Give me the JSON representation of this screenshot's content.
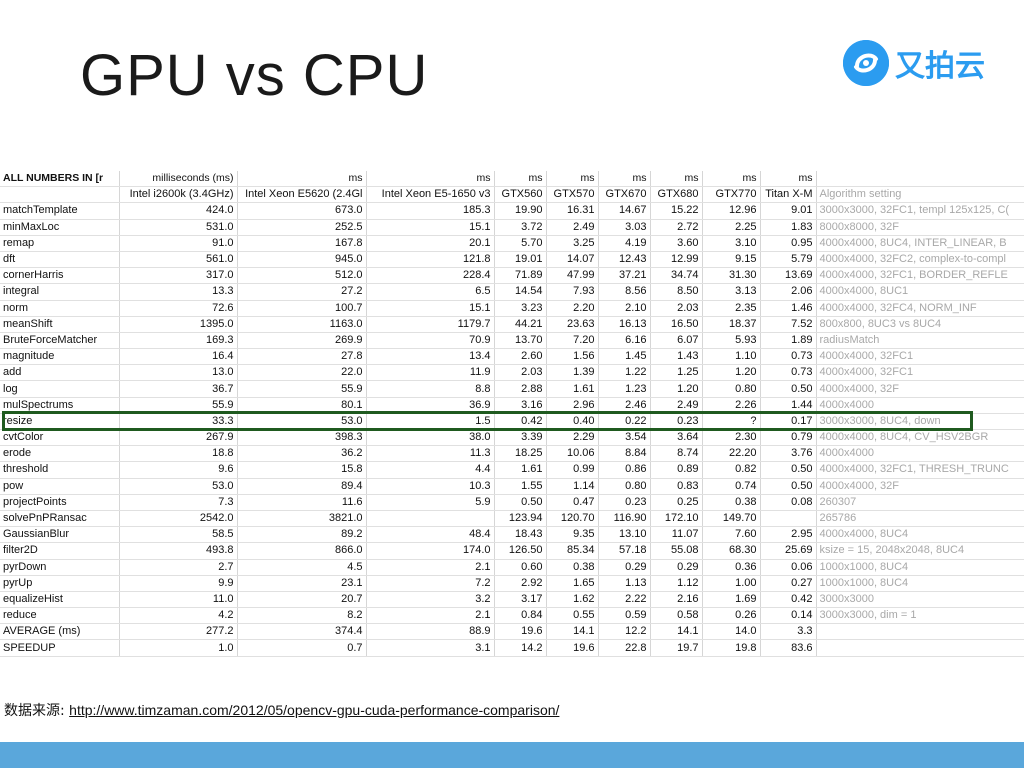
{
  "slide": {
    "title": "GPU vs CPU",
    "logo_text": "又拍云",
    "source_label": "数据来源: ",
    "source_url": "http://www.timzaman.com/2012/05/opencv-gpu-cuda-performance-comparison/"
  },
  "table": {
    "header_units": [
      "ALL NUMBERS IN [r",
      "milliseconds (ms)",
      "ms",
      "ms",
      "ms",
      "ms",
      "ms",
      "ms",
      "ms",
      "ms",
      ""
    ],
    "header_devices": [
      "",
      "Intel i2600k (3.4GHz)",
      "Intel Xeon E5620 (2.4Gl",
      "Intel Xeon E5-1650 v3",
      "GTX560",
      "GTX570",
      "GTX670",
      "GTX680",
      "GTX770",
      "Titan X-M",
      "Algorithm setting"
    ],
    "rows": [
      [
        "matchTemplate",
        "424.0",
        "673.0",
        "185.3",
        "19.90",
        "16.31",
        "14.67",
        "15.22",
        "12.96",
        "9.01",
        "3000x3000, 32FC1, templ 125x125, C("
      ],
      [
        "minMaxLoc",
        "531.0",
        "252.5",
        "15.1",
        "3.72",
        "2.49",
        "3.03",
        "2.72",
        "2.25",
        "1.83",
        "8000x8000, 32F"
      ],
      [
        "remap",
        "91.0",
        "167.8",
        "20.1",
        "5.70",
        "3.25",
        "4.19",
        "3.60",
        "3.10",
        "0.95",
        "4000x4000, 8UC4, INTER_LINEAR, B"
      ],
      [
        "dft",
        "561.0",
        "945.0",
        "121.8",
        "19.01",
        "14.07",
        "12.43",
        "12.99",
        "9.15",
        "5.79",
        "4000x4000, 32FC2, complex-to-compl"
      ],
      [
        "cornerHarris",
        "317.0",
        "512.0",
        "228.4",
        "71.89",
        "47.99",
        "37.21",
        "34.74",
        "31.30",
        "13.69",
        "4000x4000, 32FC1, BORDER_REFLE"
      ],
      [
        "integral",
        "13.3",
        "27.2",
        "6.5",
        "14.54",
        "7.93",
        "8.56",
        "8.50",
        "3.13",
        "2.06",
        "4000x4000, 8UC1"
      ],
      [
        "norm",
        "72.6",
        "100.7",
        "15.1",
        "3.23",
        "2.20",
        "2.10",
        "2.03",
        "2.35",
        "1.46",
        "4000x4000, 32FC4, NORM_INF"
      ],
      [
        "meanShift",
        "1395.0",
        "1163.0",
        "1179.7",
        "44.21",
        "23.63",
        "16.13",
        "16.50",
        "18.37",
        "7.52",
        "800x800, 8UC3 vs 8UC4"
      ],
      [
        "BruteForceMatcher",
        "169.3",
        "269.9",
        "70.9",
        "13.70",
        "7.20",
        "6.16",
        "6.07",
        "5.93",
        "1.89",
        "radiusMatch"
      ],
      [
        "magnitude",
        "16.4",
        "27.8",
        "13.4",
        "2.60",
        "1.56",
        "1.45",
        "1.43",
        "1.10",
        "0.73",
        "4000x4000, 32FC1"
      ],
      [
        "add",
        "13.0",
        "22.0",
        "11.9",
        "2.03",
        "1.39",
        "1.22",
        "1.25",
        "1.20",
        "0.73",
        "4000x4000, 32FC1"
      ],
      [
        "log",
        "36.7",
        "55.9",
        "8.8",
        "2.88",
        "1.61",
        "1.23",
        "1.20",
        "0.80",
        "0.50",
        "4000x4000, 32F"
      ],
      [
        "mulSpectrums",
        "55.9",
        "80.1",
        "36.9",
        "3.16",
        "2.96",
        "2.46",
        "2.49",
        "2.26",
        "1.44",
        "4000x4000"
      ],
      [
        "resize",
        "33.3",
        "53.0",
        "1.5",
        "0.42",
        "0.40",
        "0.22",
        "0.23",
        "?",
        "0.17",
        "3000x3000, 8UC4, down"
      ],
      [
        "cvtColor",
        "267.9",
        "398.3",
        "38.0",
        "3.39",
        "2.29",
        "3.54",
        "3.64",
        "2.30",
        "0.79",
        "4000x4000, 8UC4, CV_HSV2BGR"
      ],
      [
        "erode",
        "18.8",
        "36.2",
        "11.3",
        "18.25",
        "10.06",
        "8.84",
        "8.74",
        "22.20",
        "3.76",
        "4000x4000"
      ],
      [
        "threshold",
        "9.6",
        "15.8",
        "4.4",
        "1.61",
        "0.99",
        "0.86",
        "0.89",
        "0.82",
        "0.50",
        "4000x4000, 32FC1, THRESH_TRUNC"
      ],
      [
        "pow",
        "53.0",
        "89.4",
        "10.3",
        "1.55",
        "1.14",
        "0.80",
        "0.83",
        "0.74",
        "0.50",
        "4000x4000, 32F"
      ],
      [
        "projectPoints",
        "7.3",
        "11.6",
        "5.9",
        "0.50",
        "0.47",
        "0.23",
        "0.25",
        "0.38",
        "0.08",
        "260307"
      ],
      [
        "solvePnPRansac",
        "2542.0",
        "3821.0",
        "",
        "123.94",
        "120.70",
        "116.90",
        "172.10",
        "149.70",
        "",
        "265786"
      ],
      [
        "GaussianBlur",
        "58.5",
        "89.2",
        "48.4",
        "18.43",
        "9.35",
        "13.10",
        "11.07",
        "7.60",
        "2.95",
        "4000x4000, 8UC4"
      ],
      [
        "filter2D",
        "493.8",
        "866.0",
        "174.0",
        "126.50",
        "85.34",
        "57.18",
        "55.08",
        "68.30",
        "25.69",
        "ksize = 15, 2048x2048, 8UC4"
      ],
      [
        "pyrDown",
        "2.7",
        "4.5",
        "2.1",
        "0.60",
        "0.38",
        "0.29",
        "0.29",
        "0.36",
        "0.06",
        "1000x1000, 8UC4"
      ],
      [
        "pyrUp",
        "9.9",
        "23.1",
        "7.2",
        "2.92",
        "1.65",
        "1.13",
        "1.12",
        "1.00",
        "0.27",
        "1000x1000, 8UC4"
      ],
      [
        "equalizeHist",
        "11.0",
        "20.7",
        "3.2",
        "3.17",
        "1.62",
        "2.22",
        "2.16",
        "1.69",
        "0.42",
        "3000x3000"
      ],
      [
        "reduce",
        "4.2",
        "8.2",
        "2.1",
        "0.84",
        "0.55",
        "0.59",
        "0.58",
        "0.26",
        "0.14",
        "3000x3000, dim = 1"
      ],
      [
        "AVERAGE (ms)",
        "277.2",
        "374.4",
        "88.9",
        "19.6",
        "14.1",
        "12.2",
        "14.1",
        "14.0",
        "3.3",
        ""
      ],
      [
        "SPEEDUP",
        "1.0",
        "0.7",
        "3.1",
        "14.2",
        "19.6",
        "22.8",
        "19.7",
        "19.8",
        "83.6",
        ""
      ]
    ]
  },
  "colors": {
    "accent": "#2b9cf0",
    "highlight_border": "#1f5a1f",
    "footer_bar": "#5aa7db",
    "setting_text": "#a8a8a8"
  }
}
